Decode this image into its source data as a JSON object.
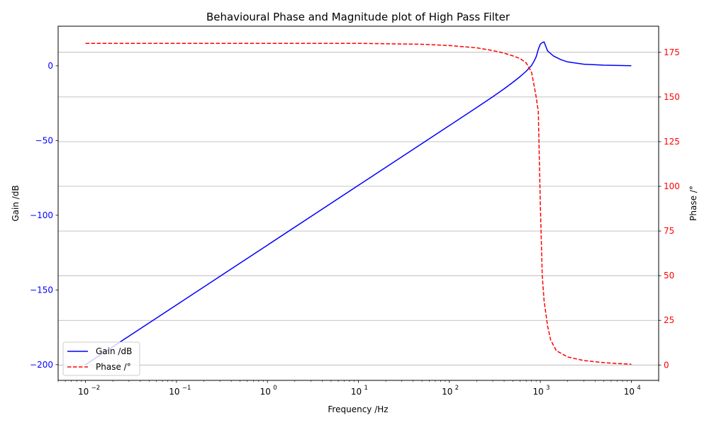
{
  "chart_data": {
    "type": "line",
    "title": "Behavioural  Phase and Magnitude plot of High Pass Filter",
    "xlabel": "Frequency /Hz",
    "ylabel_left": "Gain /dB",
    "ylabel_right": "Phase /°",
    "xscale": "log",
    "xlim": [
      0.005,
      20000
    ],
    "ylim_left": [
      -210.5,
      26.5
    ],
    "ylim_right": [
      -8.6,
      189.6
    ],
    "x_ticks": [
      {
        "value": 0.01,
        "base": "10",
        "exp": "−2"
      },
      {
        "value": 0.1,
        "base": "10",
        "exp": "−1"
      },
      {
        "value": 1,
        "base": "10",
        "exp": "0"
      },
      {
        "value": 10,
        "base": "10",
        "exp": "1"
      },
      {
        "value": 100,
        "base": "10",
        "exp": "2"
      },
      {
        "value": 1000,
        "base": "10",
        "exp": "3"
      },
      {
        "value": 10000,
        "base": "10",
        "exp": "4"
      }
    ],
    "y_ticks_left": [
      {
        "value": 0,
        "label": "0"
      },
      {
        "value": -50,
        "label": "−50"
      },
      {
        "value": -100,
        "label": "−100"
      },
      {
        "value": -150,
        "label": "−150"
      },
      {
        "value": -200,
        "label": "−200"
      }
    ],
    "y_ticks_right": [
      {
        "value": 0,
        "label": "0"
      },
      {
        "value": 25,
        "label": "25"
      },
      {
        "value": 50,
        "label": "50"
      },
      {
        "value": 75,
        "label": "75"
      },
      {
        "value": 100,
        "label": "100"
      },
      {
        "value": 125,
        "label": "125"
      },
      {
        "value": 150,
        "label": "150"
      },
      {
        "value": 175,
        "label": "175"
      }
    ],
    "grid": "horizontal, right axis",
    "legend": {
      "location": "lower-left"
    },
    "series": [
      {
        "name": "Gain /dB",
        "axis": "left",
        "color": "#0000ff",
        "style": "solid",
        "x": [
          0.01,
          0.1,
          1,
          10,
          100,
          200,
          300,
          400,
          500,
          600,
          700,
          800,
          850,
          900,
          950,
          1000,
          1050,
          1100,
          1200,
          1400,
          1700,
          2000,
          3000,
          5000,
          10000
        ],
        "y": [
          -200,
          -160,
          -120,
          -80,
          -40,
          -27.9,
          -20.7,
          -15.4,
          -11.0,
          -7.2,
          -3.6,
          0.2,
          2.9,
          6.0,
          11.0,
          14.5,
          15.5,
          16.0,
          10.0,
          6.5,
          4.0,
          2.6,
          1.1,
          0.4,
          0.1
        ]
      },
      {
        "name": "Phase /°",
        "axis": "right",
        "color": "#ff0000",
        "style": "dashed",
        "x": [
          0.01,
          1,
          10,
          50,
          100,
          200,
          300,
          400,
          500,
          600,
          700,
          800,
          850,
          900,
          950,
          1000,
          1050,
          1100,
          1200,
          1300,
          1500,
          2000,
          3000,
          5000,
          10000
        ],
        "y": [
          180,
          180,
          180,
          179.5,
          178.8,
          177.5,
          176,
          174.5,
          173,
          171.5,
          169,
          164,
          157,
          150,
          142,
          90,
          50,
          36,
          22,
          14,
          8,
          4.5,
          2.5,
          1.3,
          0.4
        ]
      }
    ]
  }
}
